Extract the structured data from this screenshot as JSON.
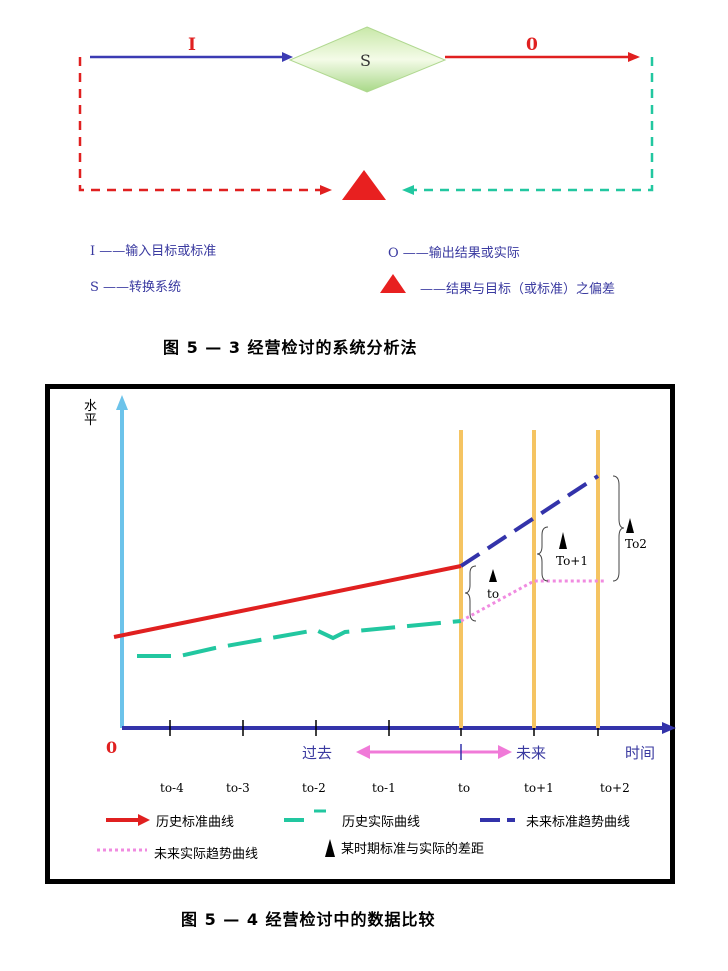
{
  "fig1": {
    "input_label": "I",
    "output_label": "0",
    "system_label": "S",
    "legend": {
      "input": "I ——输入目标或标准",
      "system": "S ——转换系统",
      "output": "O ——输出结果或实际",
      "deviation": "——结果与目标（或标准）之偏差"
    },
    "caption": "图 5 — 3    经营检讨的系统分析法"
  },
  "fig2": {
    "y_axis_label": "水平",
    "origin": "0",
    "past_label": "过去",
    "future_label": "未来",
    "time_label": "时间",
    "ticks": [
      "to-4",
      "to-3",
      "to-2",
      "to-1",
      "to",
      "to+1",
      "to+2"
    ],
    "gap_labels": [
      "to",
      "To+1",
      "To2"
    ],
    "legend": {
      "history_standard": "历史标准曲线",
      "history_actual": "历史实际曲线",
      "future_standard": "未来标准趋势曲线",
      "future_actual": "未来实际趋势曲线",
      "gap": "某时期标准与实际的差距"
    },
    "caption": "图 5 — 4    经营检讨中的数据比较"
  },
  "colors": {
    "blue": "#3b3bb3",
    "red": "#e02020",
    "green": "#22c7a0",
    "orange": "#f5c462",
    "pink": "#f08be0",
    "axis_y": "#6cc3ea",
    "dark_blue": "#3333aa"
  }
}
